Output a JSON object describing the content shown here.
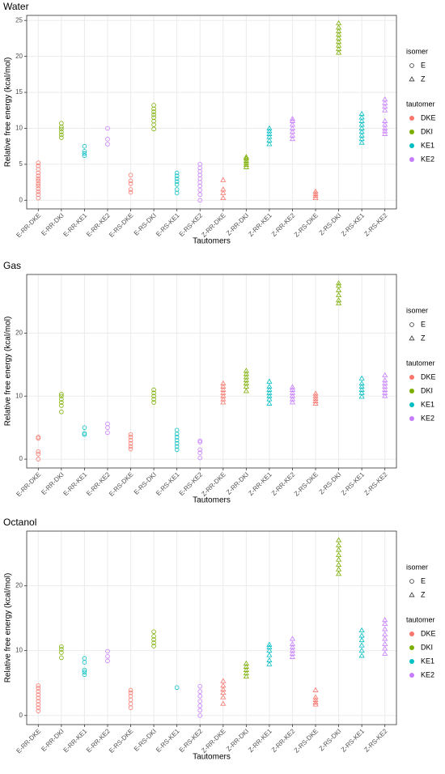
{
  "chart_data": [
    {
      "type": "strip",
      "title": "Water",
      "xlabel": "Tautomers",
      "ylabel": "Relative free energy (kcal/mol)",
      "categories": [
        "E-RR-DKE",
        "E-RR-DKI",
        "E-RR-KE1",
        "E-RR-KE2",
        "E-RS-DKE",
        "E-RS-DKI",
        "E-RS-KE1",
        "E-RS-KE2",
        "Z-RR-DKE",
        "Z-RR-DKI",
        "Z-RR-KE1",
        "Z-RR-KE2",
        "Z-RS-DKE",
        "Z-RS-DKI",
        "Z-RS-KE1",
        "Z-RS-KE2"
      ],
      "values": [
        [
          0.3,
          0.8,
          1.2,
          1.6,
          2,
          2.3,
          2.7,
          3,
          3.4,
          3.8,
          4.3,
          4.8,
          5.2
        ],
        [
          8.7,
          9.1,
          9.5,
          9.9,
          10.2,
          10.7
        ],
        [
          6.2,
          6.5,
          6.8,
          7.5
        ],
        [
          7.8,
          8.5,
          10
        ],
        [
          1.1,
          1.5,
          2.3,
          2.7,
          3.5
        ],
        [
          9.9,
          10.5,
          11,
          11.5,
          11.9,
          12.3,
          12.7,
          13.2
        ],
        [
          1,
          1.5,
          2.2,
          2.6,
          3,
          3.4,
          3.8
        ],
        [
          0,
          0.8,
          1.4,
          2,
          2.5,
          3,
          3.5,
          4,
          4.5,
          5
        ],
        [
          0.3,
          1,
          1.5,
          2.8
        ],
        [
          4.6,
          4.9,
          5.2,
          5.5,
          5.8,
          6
        ],
        [
          7.8,
          8.3,
          8.8,
          9.2,
          9.6,
          10
        ],
        [
          8.5,
          9,
          9.5,
          10,
          10.5,
          11,
          11.3
        ],
        [
          0.3,
          0.6,
          0.9,
          1.2
        ],
        [
          20.5,
          21,
          21.5,
          22,
          22.5,
          23,
          23.5,
          24,
          24.6
        ],
        [
          8,
          8.5,
          9,
          9.5,
          10,
          10.5,
          11,
          11.5,
          12
        ],
        [
          9.2,
          9.6,
          10,
          10.5,
          11,
          12.5,
          13,
          13.5,
          14
        ]
      ],
      "ylim": [
        -1.2,
        25.7
      ],
      "yticks": [
        0,
        5,
        10,
        15,
        20,
        25
      ],
      "grid": true,
      "legends": [
        {
          "title": "isomer",
          "entries": [
            {
              "label": "E",
              "shape": "circle"
            },
            {
              "label": "Z",
              "shape": "triangle"
            }
          ]
        },
        {
          "title": "tautomer",
          "entries": [
            {
              "label": "DKE",
              "color": "#F8766D"
            },
            {
              "label": "DKI",
              "color": "#7CAE00"
            },
            {
              "label": "KE1",
              "color": "#00BFC4"
            },
            {
              "label": "KE2",
              "color": "#C77CFF"
            }
          ]
        }
      ]
    },
    {
      "type": "strip",
      "title": "Gas",
      "xlabel": "Tautomers",
      "ylabel": "Relative free energy (kcal/mol)",
      "categories": [
        "E-RR-DKE",
        "E-RR-DKI",
        "E-RR-KE1",
        "E-RR-KE2",
        "E-RS-DKE",
        "E-RS-DKI",
        "E-RS-KE1",
        "E-RS-KE2",
        "Z-RR-DKE",
        "Z-RR-DKI",
        "Z-RR-KE1",
        "Z-RR-KE2",
        "Z-RS-DKE",
        "Z-RS-DKI",
        "Z-RS-KE1",
        "Z-RS-KE2"
      ],
      "values": [
        [
          0,
          0.8,
          1.2,
          3.3,
          3.5
        ],
        [
          7.5,
          8.5,
          9,
          9.5,
          10,
          10.3
        ],
        [
          3.9,
          4.1,
          5
        ],
        [
          4.2,
          5,
          5.6
        ],
        [
          1.6,
          2,
          2.5,
          3,
          3.5,
          3.9
        ],
        [
          9,
          9.5,
          10,
          10.5,
          11
        ],
        [
          1.5,
          2,
          2.5,
          3,
          3.5,
          4,
          4.6
        ],
        [
          0.2,
          1,
          1.5,
          2.7,
          2.9
        ],
        [
          9,
          9.5,
          10,
          10.5,
          11,
          11.5,
          12
        ],
        [
          10.8,
          11.5,
          12,
          12.5,
          13,
          13.5,
          14
        ],
        [
          8.8,
          9.5,
          10,
          10.5,
          11,
          11.5,
          12.3
        ],
        [
          9,
          9.5,
          10,
          10.5,
          11,
          11.4
        ],
        [
          8.8,
          9.2,
          9.6,
          10,
          10.4
        ],
        [
          24.7,
          25.2,
          26,
          26.8,
          27.5,
          27.9
        ],
        [
          9.9,
          10.5,
          11,
          11.5,
          12,
          12.8
        ],
        [
          10,
          10.5,
          11,
          11.5,
          12,
          12.5,
          13.3
        ]
      ],
      "ylim": [
        -1.4,
        29.3
      ],
      "yticks": [
        0,
        10,
        20
      ],
      "grid": true,
      "legends": [
        {
          "title": "isomer",
          "entries": [
            {
              "label": "E",
              "shape": "circle"
            },
            {
              "label": "Z",
              "shape": "triangle"
            }
          ]
        },
        {
          "title": "tautomer",
          "entries": [
            {
              "label": "DKE",
              "color": "#F8766D"
            },
            {
              "label": "DKI",
              "color": "#7CAE00"
            },
            {
              "label": "KE1",
              "color": "#00BFC4"
            },
            {
              "label": "KE2",
              "color": "#C77CFF"
            }
          ]
        }
      ]
    },
    {
      "type": "strip",
      "title": "Octanol",
      "xlabel": "Tautomers",
      "ylabel": "Relative free energy (kcal/mol)",
      "categories": [
        "E-RR-DKE",
        "E-RR-DKI",
        "E-RR-KE1",
        "E-RR-KE2",
        "E-RS-DKE",
        "E-RS-DKI",
        "E-RS-KE1",
        "E-RS-KE2",
        "Z-RR-DKE",
        "Z-RR-DKI",
        "Z-RR-KE1",
        "Z-RR-KE2",
        "Z-RS-DKE",
        "Z-RS-DKI",
        "Z-RS-KE1",
        "Z-RS-KE2"
      ],
      "values": [
        [
          0.7,
          1.2,
          1.7,
          2.2,
          2.7,
          3.2,
          3.7,
          4.2,
          4.6
        ],
        [
          8.9,
          9.7,
          10.2,
          10.6
        ],
        [
          6.3,
          6.7,
          7,
          8.2,
          8.8
        ],
        [
          8.4,
          9.1,
          9.9
        ],
        [
          1.2,
          1.8,
          2.4,
          3,
          3.5,
          3.9
        ],
        [
          10.7,
          11.2,
          11.7,
          12.2,
          12.9
        ],
        [
          4.3
        ],
        [
          0,
          0.8,
          1.5,
          2.2,
          3,
          3.7,
          4.5
        ],
        [
          1.8,
          2.8,
          3.5,
          4,
          4.6,
          5.3
        ],
        [
          6,
          6.5,
          7,
          7.5,
          8
        ],
        [
          7.9,
          8.5,
          9.3,
          10,
          10.5,
          10.9
        ],
        [
          9,
          9.5,
          10,
          10.5,
          11,
          11.8
        ],
        [
          1.7,
          2,
          2.4,
          2.8,
          3.9
        ],
        [
          21.8,
          22.5,
          23.2,
          24,
          24.7,
          25.5,
          26.2,
          27
        ],
        [
          9.2,
          10,
          10.8,
          11.6,
          12.3,
          13.1
        ],
        [
          9.5,
          10.3,
          11,
          11.8,
          12.5,
          13.3,
          14.1,
          14.7
        ]
      ],
      "ylim": [
        -1.4,
        28.4
      ],
      "yticks": [
        0,
        10,
        20
      ],
      "grid": true,
      "legends": [
        {
          "title": "isomer",
          "entries": [
            {
              "label": "E",
              "shape": "circle"
            },
            {
              "label": "Z",
              "shape": "triangle"
            }
          ]
        },
        {
          "title": "tautomer",
          "entries": [
            {
              "label": "DKE",
              "color": "#F8766D"
            },
            {
              "label": "DKI",
              "color": "#7CAE00"
            },
            {
              "label": "KE1",
              "color": "#00BFC4"
            },
            {
              "label": "KE2",
              "color": "#C77CFF"
            }
          ]
        }
      ]
    }
  ]
}
